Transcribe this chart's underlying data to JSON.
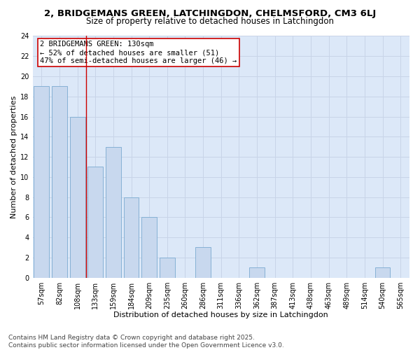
{
  "title": "2, BRIDGEMANS GREEN, LATCHINGDON, CHELMSFORD, CM3 6LJ",
  "subtitle": "Size of property relative to detached houses in Latchingdon",
  "xlabel": "Distribution of detached houses by size in Latchingdon",
  "ylabel": "Number of detached properties",
  "categories": [
    "57sqm",
    "82sqm",
    "108sqm",
    "133sqm",
    "159sqm",
    "184sqm",
    "209sqm",
    "235sqm",
    "260sqm",
    "286sqm",
    "311sqm",
    "336sqm",
    "362sqm",
    "387sqm",
    "413sqm",
    "438sqm",
    "463sqm",
    "489sqm",
    "514sqm",
    "540sqm",
    "565sqm"
  ],
  "values": [
    19,
    19,
    16,
    11,
    13,
    8,
    6,
    2,
    0,
    3,
    0,
    0,
    1,
    0,
    0,
    0,
    0,
    0,
    0,
    1,
    0
  ],
  "bar_color": "#c8d8ee",
  "bar_edge_color": "#7aaad0",
  "grid_color": "#c8d4e8",
  "plot_bg_color": "#dce8f8",
  "fig_bg_color": "#ffffff",
  "vline_x": 2.5,
  "vline_color": "#cc0000",
  "annotation_text": "2 BRIDGEMANS GREEN: 130sqm\n← 52% of detached houses are smaller (51)\n47% of semi-detached houses are larger (46) →",
  "annotation_box_color": "white",
  "annotation_box_edge_color": "#cc0000",
  "ylim": [
    0,
    24
  ],
  "yticks": [
    0,
    2,
    4,
    6,
    8,
    10,
    12,
    14,
    16,
    18,
    20,
    22,
    24
  ],
  "footnote": "Contains HM Land Registry data © Crown copyright and database right 2025.\nContains public sector information licensed under the Open Government Licence v3.0.",
  "title_fontsize": 9.5,
  "subtitle_fontsize": 8.5,
  "xlabel_fontsize": 8,
  "ylabel_fontsize": 8,
  "tick_fontsize": 7,
  "annotation_fontsize": 7.5,
  "footnote_fontsize": 6.5
}
